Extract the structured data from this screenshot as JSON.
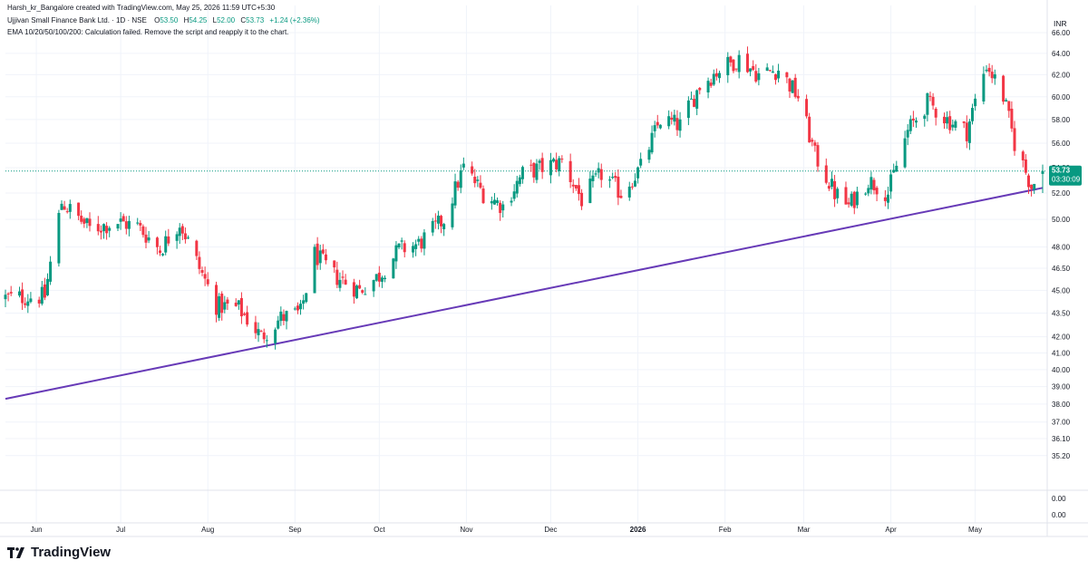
{
  "header": {
    "author_line": "Harsh_kr_Bangalore created with TradingView.com, May 25, 2026 11:59 UTC+5:30",
    "symbol": "Ujjivan Small Finance Bank Ltd. · 1D · NSE",
    "o_label": "O",
    "o_value": "53.50",
    "h_label": "H",
    "h_value": "54.25",
    "l_label": "L",
    "l_value": "52.00",
    "c_label": "C",
    "c_value": "53.73",
    "change": "+1.24 (+2.36%)",
    "ema_line": "EMA 10/20/50/100/200: Calculation failed. Remove the script and reapply it to the chart."
  },
  "currency": "INR",
  "price_badge": {
    "price": "53.73",
    "countdown": "03:30:09"
  },
  "brand": "TradingView",
  "colors": {
    "up": "#089981",
    "down": "#f23645",
    "trendline": "#673ab7",
    "badge": "#089981",
    "text": "#131722",
    "axis_text": "#131722",
    "grid": "#f0f3fa"
  },
  "chart_data": {
    "type": "candlestick",
    "x_axis_labels": [
      "Jun",
      "Jul",
      "Aug",
      "Sep",
      "Oct",
      "Nov",
      "Dec",
      "2026",
      "Feb",
      "Mar",
      "Apr",
      "May"
    ],
    "y_axis_labels": [
      "66.00",
      "64.00",
      "62.00",
      "60.00",
      "58.00",
      "56.00",
      "54.00",
      "52.00",
      "50.00",
      "48.00",
      "46.50",
      "45.00",
      "43.50",
      "42.00",
      "41.00",
      "40.00",
      "39.00",
      "38.00",
      "37.00",
      "36.10",
      "35.20"
    ],
    "scale": "log",
    "ylim": [
      34.3,
      67.8
    ],
    "indicator_pane_labels": [
      "0.00",
      "0.00"
    ],
    "trendline": {
      "from": {
        "date": "2025-05-21",
        "price": 38.3
      },
      "to": {
        "date": "2026-05-25",
        "price": 52.4
      }
    },
    "series_description": "Daily OHLC candles, approx. May 2025 – May 2026, close path anchors:",
    "close_path": [
      [
        "2025-05-21",
        44.5
      ],
      [
        "2025-06-04",
        44.6
      ],
      [
        "2025-06-10",
        51.3
      ],
      [
        "2025-06-20",
        49.3
      ],
      [
        "2025-06-30",
        49.8
      ],
      [
        "2025-07-07",
        49.5
      ],
      [
        "2025-07-15",
        47.8
      ],
      [
        "2025-07-22",
        49.8
      ],
      [
        "2025-07-29",
        46.5
      ],
      [
        "2025-08-04",
        44.0
      ],
      [
        "2025-08-12",
        43.8
      ],
      [
        "2025-08-20",
        42.0
      ],
      [
        "2025-08-27",
        43.2
      ],
      [
        "2025-09-03",
        43.5
      ],
      [
        "2025-09-08",
        47.5
      ],
      [
        "2025-09-15",
        46.0
      ],
      [
        "2025-09-24",
        45.0
      ],
      [
        "2025-10-01",
        46.0
      ],
      [
        "2025-10-08",
        47.8
      ],
      [
        "2025-10-15",
        48.2
      ],
      [
        "2025-10-24",
        50.0
      ],
      [
        "2025-10-31",
        54.0
      ],
      [
        "2025-11-07",
        52.0
      ],
      [
        "2025-11-14",
        51.0
      ],
      [
        "2025-11-21",
        53.5
      ],
      [
        "2025-11-28",
        54.0
      ],
      [
        "2025-12-05",
        54.5
      ],
      [
        "2025-12-12",
        51.5
      ],
      [
        "2025-12-19",
        53.5
      ],
      [
        "2025-12-26",
        52.0
      ],
      [
        "2026-01-02",
        54.0
      ],
      [
        "2026-01-09",
        58.0
      ],
      [
        "2026-01-16",
        57.5
      ],
      [
        "2026-01-23",
        61.0
      ],
      [
        "2026-01-30",
        62.5
      ],
      [
        "2026-02-06",
        63.5
      ],
      [
        "2026-02-13",
        62.0
      ],
      [
        "2026-02-20",
        62.5
      ],
      [
        "2026-02-27",
        60.0
      ],
      [
        "2026-03-05",
        55.0
      ],
      [
        "2026-03-12",
        52.0
      ],
      [
        "2026-03-17",
        51.0
      ],
      [
        "2026-03-24",
        53.0
      ],
      [
        "2026-03-31",
        52.0
      ],
      [
        "2026-04-07",
        57.0
      ],
      [
        "2026-04-14",
        59.5
      ],
      [
        "2026-04-21",
        58.0
      ],
      [
        "2026-04-28",
        57.0
      ],
      [
        "2026-05-05",
        63.0
      ],
      [
        "2026-05-11",
        60.0
      ],
      [
        "2026-05-15",
        56.0
      ],
      [
        "2026-05-21",
        52.5
      ],
      [
        "2026-05-25",
        53.73
      ]
    ],
    "last_candle": {
      "date": "2026-05-25",
      "open": 53.5,
      "high": 54.25,
      "low": 52.0,
      "close": 53.73
    }
  }
}
